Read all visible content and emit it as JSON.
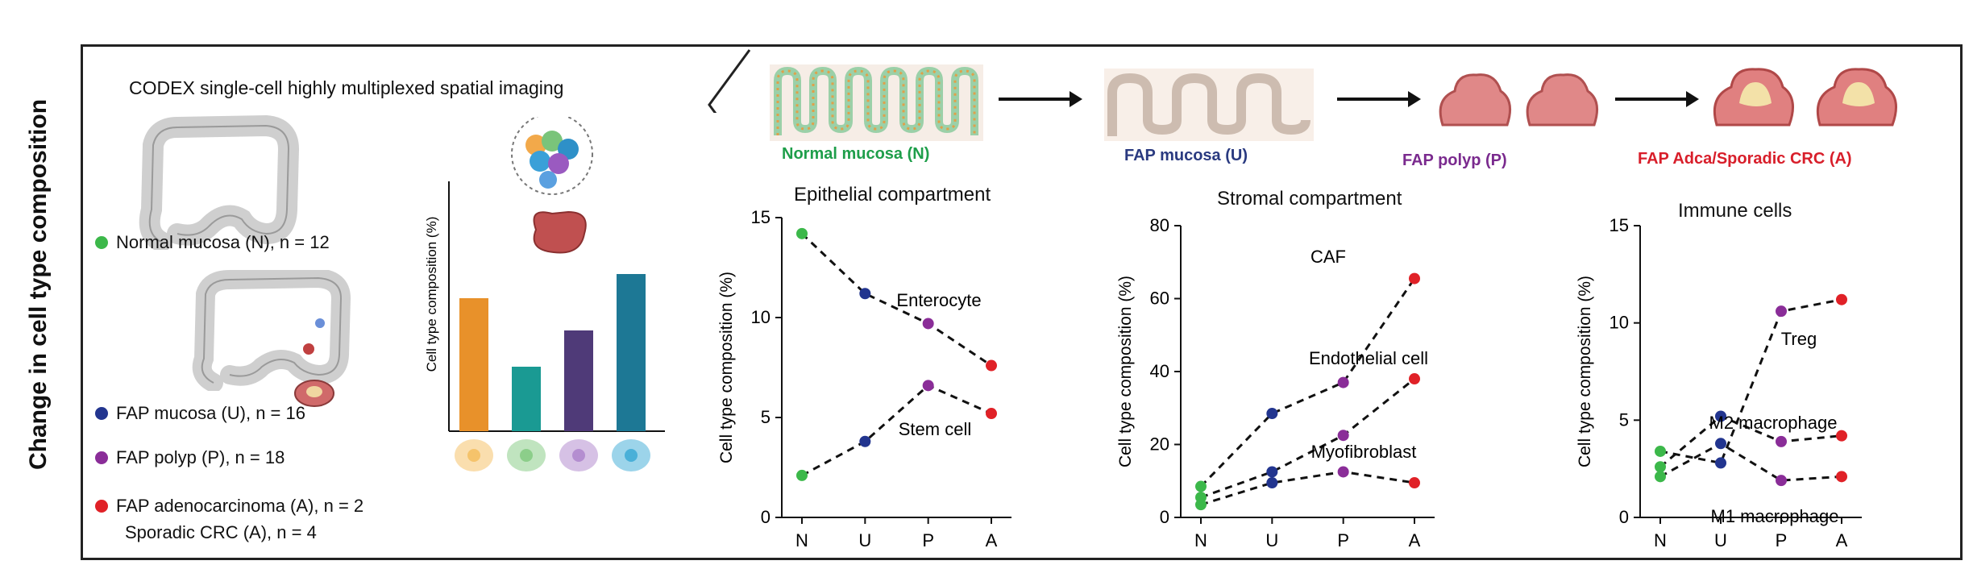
{
  "side_title": "Change in cell type composition",
  "codex_title": "CODEX single-cell highly multiplexed spatial imaging",
  "legend": [
    {
      "label": "Normal mucosa (N), n = 12",
      "color": "#3cb84a"
    },
    {
      "label": "FAP mucosa (U), n = 16",
      "color": "#22358f"
    },
    {
      "label": "FAP polyp (P), n = 18",
      "color": "#8a2d98"
    },
    {
      "label": "FAP adenocarcinoma (A), n = 2",
      "color": "#e02127"
    },
    {
      "label": "Sporadic CRC (A), n = 4"
    }
  ],
  "stages": [
    {
      "label": "Normal mucosa (N)",
      "color": "#1e9e4a"
    },
    {
      "label": "FAP mucosa (U)",
      "color": "#2a3a80"
    },
    {
      "label": "FAP polyp (P)",
      "color": "#7a2a8e"
    },
    {
      "label": "FAP Adca/Sporadic CRC (A)",
      "color": "#d81e2a"
    }
  ],
  "bar_schematic": {
    "ylabel": "Cell type composition (%)",
    "values": [
      0.66,
      0.32,
      0.5,
      0.78
    ],
    "colors": [
      "#e8912a",
      "#1a9a93",
      "#4f3a78",
      "#1d7895"
    ],
    "cell_colors": [
      "#f5c36b",
      "#8cce8a",
      "#b48ed0",
      "#4ab0d8"
    ]
  },
  "chart_data": [
    {
      "type": "line",
      "title": "Epithelial compartment",
      "ylabel": "Cell type composition (%)",
      "categories": [
        "N",
        "U",
        "P",
        "A"
      ],
      "ylim": [
        0,
        15
      ],
      "yticks": [
        0,
        5,
        10,
        15
      ],
      "series": [
        {
          "name": "Enterocyte",
          "values": [
            14.2,
            11.2,
            9.7,
            7.6
          ]
        },
        {
          "name": "Stem cell",
          "values": [
            2.1,
            3.8,
            6.6,
            5.2
          ]
        }
      ]
    },
    {
      "type": "line",
      "title": "Stromal compartment",
      "ylabel": "Cell type composition (%)",
      "categories": [
        "N",
        "U",
        "P",
        "A"
      ],
      "ylim": [
        0,
        80
      ],
      "yticks": [
        0,
        20,
        40,
        60,
        80
      ],
      "series": [
        {
          "name": "CAF",
          "values": [
            8.5,
            28.5,
            37,
            65.5
          ]
        },
        {
          "name": "Endothelial cell",
          "values": [
            5.5,
            12.5,
            22.5,
            38
          ]
        },
        {
          "name": "Myofibroblast",
          "values": [
            3.5,
            9.5,
            12.5,
            9.5
          ]
        }
      ]
    },
    {
      "type": "line",
      "title": "Immune cells",
      "ylabel": "Cell type composition (%)",
      "categories": [
        "N",
        "U",
        "P",
        "A"
      ],
      "ylim": [
        0,
        15
      ],
      "yticks": [
        0,
        5,
        10,
        15
      ],
      "series": [
        {
          "name": "Treg",
          "values": [
            3.4,
            2.8,
            10.6,
            11.2
          ]
        },
        {
          "name": "M2 macrophage",
          "values": [
            2.6,
            5.2,
            3.9,
            4.2
          ]
        },
        {
          "name": "M1 macrophage",
          "values": [
            2.1,
            3.8,
            1.9,
            2.1
          ]
        }
      ]
    }
  ]
}
